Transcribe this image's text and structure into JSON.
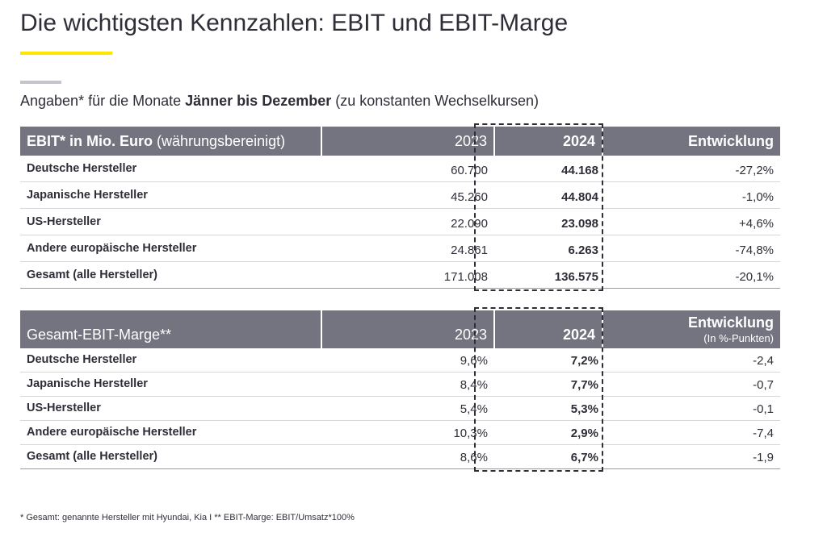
{
  "title": "Die wichtigsten Kennzahlen: EBIT und EBIT-Marge",
  "subtitle": {
    "pre": "Angaben* für die Monate ",
    "bold": "Jänner bis Dezember",
    "post": " (zu konstanten Wechselkursen)"
  },
  "colors": {
    "accent": "#ffe600",
    "header_bg": "#747480",
    "text": "#2e2e38"
  },
  "table1": {
    "header": {
      "label_bold": "EBIT* in Mio. Euro",
      "label_normal": " (währungsbereinigt)",
      "y2023": "2023",
      "y2024": "2024",
      "change": "Entwicklung"
    },
    "rows": [
      {
        "label": "Deutsche Hersteller",
        "v2023": "60.700",
        "v2024": "44.168",
        "change": "-27,2%"
      },
      {
        "label": "Japanische Hersteller",
        "v2023": "45.260",
        "v2024": "44.804",
        "change": "-1,0%"
      },
      {
        "label": "US-Hersteller",
        "v2023": "22.090",
        "v2024": "23.098",
        "change": "+4,6%"
      },
      {
        "label": "Andere europäische Hersteller",
        "v2023": "24.861",
        "v2024": "6.263",
        "change": "-74,8%"
      },
      {
        "label": "Gesamt (alle Hersteller)",
        "v2023": "171.008",
        "v2024": "136.575",
        "change": "-20,1%"
      }
    ]
  },
  "table2": {
    "header": {
      "label": "Gesamt-EBIT-Marge**",
      "y2023": "2023",
      "y2024": "2024",
      "change": "Entwicklung",
      "change_sub": "(In %-Punkten)"
    },
    "rows": [
      {
        "label": "Deutsche Hersteller",
        "v2023": "9,6%",
        "v2024": "7,2%",
        "change": "-2,4"
      },
      {
        "label": "Japanische Hersteller",
        "v2023": "8,4%",
        "v2024": "7,7%",
        "change": "-0,7"
      },
      {
        "label": "US-Hersteller",
        "v2023": "5,4%",
        "v2024": "5,3%",
        "change": "-0,1"
      },
      {
        "label": "Andere europäische Hersteller",
        "v2023": "10,3%",
        "v2024": "2,9%",
        "change": "-7,4"
      },
      {
        "label": "Gesamt (alle Hersteller)",
        "v2023": "8,6%",
        "v2024": "6,7%",
        "change": "-1,9"
      }
    ]
  },
  "footnote": "* Gesamt: genannte Hersteller mit Hyundai, Kia I ** EBIT-Marge: EBIT/Umsatz*100%"
}
